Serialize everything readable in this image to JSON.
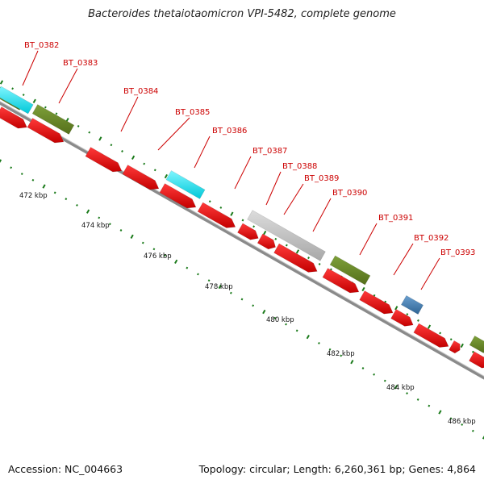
{
  "title": "Bacteroides thetaiotaomicron VPI-5482, complete genome",
  "footer": {
    "accession": "Accession: NC_004663",
    "stats": "Topology: circular; Length: 6,260,361 bp; Genes: 4,864"
  },
  "colors": {
    "forward_cds": "#e00000",
    "reverse_green": "#6b8e23",
    "cyan": "#00e5ee",
    "gray": "#c0c0c0",
    "blue": "#4682b4",
    "backbone": "#808080",
    "tick": "#1a7a1a",
    "label": "#cc0000"
  },
  "gene_labels": [
    "BT_0382",
    "BT_0383",
    "BT_0384",
    "BT_0385",
    "BT_0386",
    "BT_0387",
    "BT_0388",
    "BT_0389",
    "BT_0390",
    "BT_0391",
    "BT_0392",
    "BT_0393"
  ],
  "kbp_labels": [
    "472 kbp",
    "474 kbp",
    "476 kbp",
    "478 kbp",
    "480 kbp",
    "482 kbp",
    "484 kbp",
    "486 kbp"
  ]
}
